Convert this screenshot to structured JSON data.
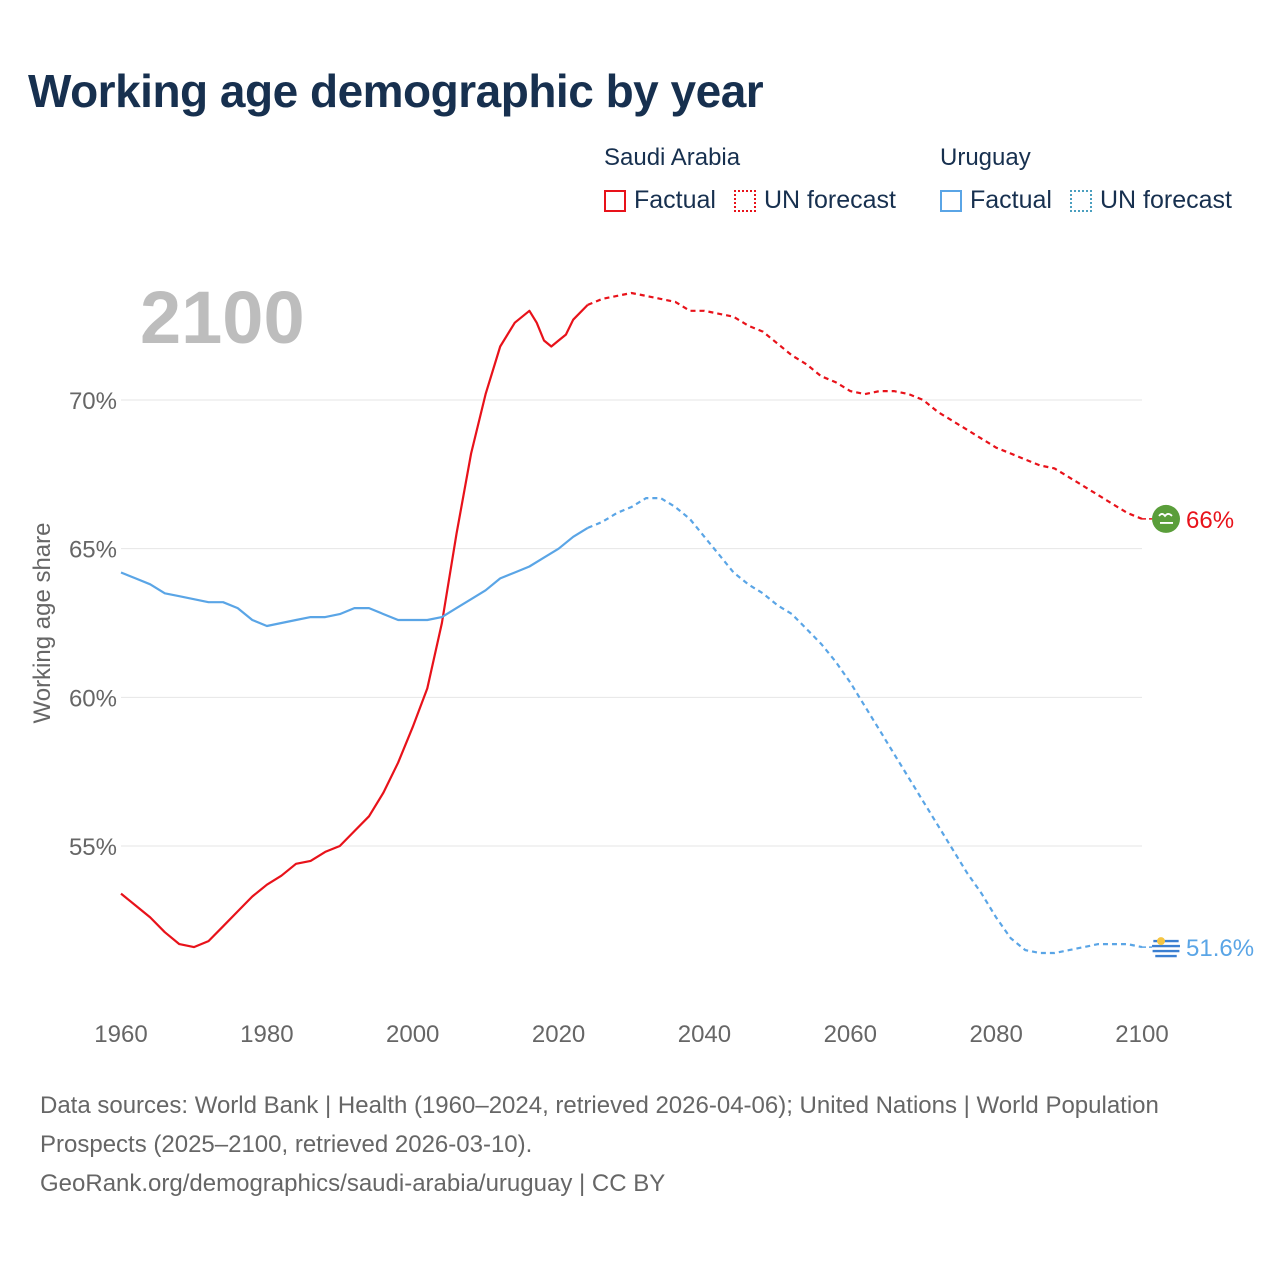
{
  "title": "Working age demographic by year",
  "legend": {
    "groups": [
      {
        "country": "Saudi Arabia",
        "factual_label": "Factual",
        "forecast_label": "UN forecast",
        "color": "#e8121a"
      },
      {
        "country": "Uruguay",
        "factual_label": "Factual",
        "forecast_label": "UN forecast",
        "color": "#5aa5e6"
      }
    ]
  },
  "year_label": "2100",
  "footer": {
    "line1": "Data sources: World Bank | Health (1960–2024, retrieved 2026-04-06); United Nations | World Population Prospects (2025–2100, retrieved 2026-03-10).",
    "line2": "GeoRank.org/demographics/saudi-arabia/uruguay | CC BY"
  },
  "chart_data": {
    "type": "line",
    "title": "Working age demographic by year",
    "xlabel": "",
    "ylabel": "Working age share",
    "xlim": [
      1960,
      2100
    ],
    "ylim": [
      50.5,
      74
    ],
    "x_ticks": [
      1960,
      1980,
      2000,
      2020,
      2040,
      2060,
      2080,
      2100
    ],
    "x_tick_labels": [
      "1960",
      "1980",
      "2000",
      "2020",
      "2040",
      "2060",
      "2080",
      "2100"
    ],
    "y_ticks": [
      55,
      60,
      65,
      70
    ],
    "y_tick_labels": [
      "55%",
      "60%",
      "65%",
      "70%"
    ],
    "grid": true,
    "factual_until": 2024,
    "series": [
      {
        "name": "Saudi Arabia",
        "color": "#e8121a",
        "end_label": "66%",
        "flag": "saudi-arabia-flag",
        "points": [
          [
            1960,
            53.4
          ],
          [
            1962,
            53.0
          ],
          [
            1964,
            52.6
          ],
          [
            1966,
            52.1
          ],
          [
            1968,
            51.7
          ],
          [
            1970,
            51.6
          ],
          [
            1972,
            51.8
          ],
          [
            1974,
            52.3
          ],
          [
            1976,
            52.8
          ],
          [
            1978,
            53.3
          ],
          [
            1980,
            53.7
          ],
          [
            1982,
            54.0
          ],
          [
            1984,
            54.4
          ],
          [
            1986,
            54.5
          ],
          [
            1988,
            54.8
          ],
          [
            1990,
            55.0
          ],
          [
            1992,
            55.5
          ],
          [
            1994,
            56.0
          ],
          [
            1996,
            56.8
          ],
          [
            1998,
            57.8
          ],
          [
            2000,
            59.0
          ],
          [
            2002,
            60.3
          ],
          [
            2004,
            62.5
          ],
          [
            2006,
            65.5
          ],
          [
            2008,
            68.2
          ],
          [
            2010,
            70.2
          ],
          [
            2012,
            71.8
          ],
          [
            2014,
            72.6
          ],
          [
            2016,
            73.0
          ],
          [
            2017,
            72.6
          ],
          [
            2018,
            72.0
          ],
          [
            2019,
            71.8
          ],
          [
            2020,
            72.0
          ],
          [
            2021,
            72.2
          ],
          [
            2022,
            72.7
          ],
          [
            2024,
            73.2
          ],
          [
            2026,
            73.4
          ],
          [
            2028,
            73.5
          ],
          [
            2030,
            73.6
          ],
          [
            2032,
            73.5
          ],
          [
            2034,
            73.4
          ],
          [
            2036,
            73.3
          ],
          [
            2038,
            73.0
          ],
          [
            2040,
            73.0
          ],
          [
            2042,
            72.9
          ],
          [
            2044,
            72.8
          ],
          [
            2046,
            72.5
          ],
          [
            2048,
            72.3
          ],
          [
            2050,
            71.9
          ],
          [
            2052,
            71.5
          ],
          [
            2054,
            71.2
          ],
          [
            2056,
            70.8
          ],
          [
            2058,
            70.6
          ],
          [
            2060,
            70.3
          ],
          [
            2062,
            70.2
          ],
          [
            2064,
            70.3
          ],
          [
            2066,
            70.3
          ],
          [
            2068,
            70.2
          ],
          [
            2070,
            70.0
          ],
          [
            2072,
            69.6
          ],
          [
            2074,
            69.3
          ],
          [
            2076,
            69.0
          ],
          [
            2078,
            68.7
          ],
          [
            2080,
            68.4
          ],
          [
            2082,
            68.2
          ],
          [
            2084,
            68.0
          ],
          [
            2086,
            67.8
          ],
          [
            2088,
            67.7
          ],
          [
            2090,
            67.4
          ],
          [
            2092,
            67.1
          ],
          [
            2094,
            66.8
          ],
          [
            2096,
            66.5
          ],
          [
            2098,
            66.2
          ],
          [
            2100,
            66.0
          ]
        ]
      },
      {
        "name": "Uruguay",
        "color": "#5aa5e6",
        "end_label": "51.6%",
        "flag": "uruguay-flag",
        "points": [
          [
            1960,
            64.2
          ],
          [
            1962,
            64.0
          ],
          [
            1964,
            63.8
          ],
          [
            1966,
            63.5
          ],
          [
            1968,
            63.4
          ],
          [
            1970,
            63.3
          ],
          [
            1972,
            63.2
          ],
          [
            1974,
            63.2
          ],
          [
            1976,
            63.0
          ],
          [
            1978,
            62.6
          ],
          [
            1980,
            62.4
          ],
          [
            1982,
            62.5
          ],
          [
            1984,
            62.6
          ],
          [
            1986,
            62.7
          ],
          [
            1988,
            62.7
          ],
          [
            1990,
            62.8
          ],
          [
            1992,
            63.0
          ],
          [
            1994,
            63.0
          ],
          [
            1996,
            62.8
          ],
          [
            1998,
            62.6
          ],
          [
            2000,
            62.6
          ],
          [
            2002,
            62.6
          ],
          [
            2004,
            62.7
          ],
          [
            2006,
            63.0
          ],
          [
            2008,
            63.3
          ],
          [
            2010,
            63.6
          ],
          [
            2012,
            64.0
          ],
          [
            2014,
            64.2
          ],
          [
            2016,
            64.4
          ],
          [
            2018,
            64.7
          ],
          [
            2020,
            65.0
          ],
          [
            2022,
            65.4
          ],
          [
            2024,
            65.7
          ],
          [
            2026,
            65.9
          ],
          [
            2028,
            66.2
          ],
          [
            2030,
            66.4
          ],
          [
            2032,
            66.7
          ],
          [
            2034,
            66.7
          ],
          [
            2036,
            66.4
          ],
          [
            2038,
            66.0
          ],
          [
            2040,
            65.4
          ],
          [
            2042,
            64.8
          ],
          [
            2044,
            64.2
          ],
          [
            2046,
            63.8
          ],
          [
            2048,
            63.5
          ],
          [
            2050,
            63.1
          ],
          [
            2052,
            62.8
          ],
          [
            2054,
            62.3
          ],
          [
            2056,
            61.8
          ],
          [
            2058,
            61.2
          ],
          [
            2060,
            60.5
          ],
          [
            2062,
            59.7
          ],
          [
            2064,
            58.9
          ],
          [
            2066,
            58.1
          ],
          [
            2068,
            57.3
          ],
          [
            2070,
            56.5
          ],
          [
            2072,
            55.7
          ],
          [
            2074,
            54.9
          ],
          [
            2076,
            54.1
          ],
          [
            2078,
            53.4
          ],
          [
            2080,
            52.6
          ],
          [
            2082,
            51.9
          ],
          [
            2084,
            51.5
          ],
          [
            2086,
            51.4
          ],
          [
            2088,
            51.4
          ],
          [
            2090,
            51.5
          ],
          [
            2092,
            51.6
          ],
          [
            2094,
            51.7
          ],
          [
            2096,
            51.7
          ],
          [
            2098,
            51.7
          ],
          [
            2100,
            51.6
          ]
        ]
      }
    ]
  }
}
